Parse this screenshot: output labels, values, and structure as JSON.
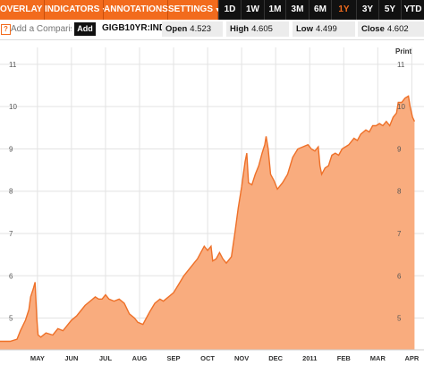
{
  "toolbar": {
    "overlay": "OVERLAY",
    "indicators": "INDICATORS",
    "annotations": "ANNOTATIONS",
    "settings": "SETTINGS",
    "ranges": [
      "1D",
      "1W",
      "1M",
      "3M",
      "6M",
      "1Y",
      "3Y",
      "5Y",
      "YTD"
    ],
    "active_range": "1Y"
  },
  "compare": {
    "help": "?",
    "placeholder": "Add a Comparison",
    "add_label": "Add"
  },
  "ticker": "GIGB10YR:IND",
  "stats": {
    "open_label": "Open",
    "open_value": "4.523",
    "high_label": "High",
    "high_value": "4.605",
    "low_label": "Low",
    "low_value": "4.499",
    "close_label": "Close",
    "close_value": "4.602"
  },
  "print_label": "Print",
  "colors": {
    "accent": "#f26b1d",
    "area_fill": "#f9ac7e",
    "line": "#ee7028"
  },
  "chart_data": {
    "type": "area",
    "ylim": [
      4.25,
      11.4
    ],
    "yticks": [
      5,
      6,
      7,
      8,
      9,
      10,
      11
    ],
    "grid": true,
    "x_labels": [
      {
        "label": "MAY",
        "x": 1.1
      },
      {
        "label": "JUN",
        "x": 2.1
      },
      {
        "label": "JUL",
        "x": 3.1
      },
      {
        "label": "AUG",
        "x": 4.1
      },
      {
        "label": "SEP",
        "x": 5.1
      },
      {
        "label": "OCT",
        "x": 6.1
      },
      {
        "label": "NOV",
        "x": 7.1
      },
      {
        "label": "DEC",
        "x": 8.1
      },
      {
        "label": "2011",
        "x": 9.1
      },
      {
        "label": "FEB",
        "x": 10.1
      },
      {
        "label": "MAR",
        "x": 11.1
      },
      {
        "label": "APR",
        "x": 12.1
      }
    ],
    "x_range": [
      0.0,
      12.3
    ],
    "series": [
      {
        "points": [
          [
            0.0,
            4.45
          ],
          [
            0.3,
            4.45
          ],
          [
            0.5,
            4.5
          ],
          [
            0.6,
            4.7
          ],
          [
            0.75,
            4.95
          ],
          [
            0.85,
            5.2
          ],
          [
            0.9,
            5.5
          ],
          [
            0.98,
            5.7
          ],
          [
            1.03,
            5.85
          ],
          [
            1.08,
            5.0
          ],
          [
            1.12,
            4.6
          ],
          [
            1.2,
            4.55
          ],
          [
            1.35,
            4.65
          ],
          [
            1.55,
            4.6
          ],
          [
            1.7,
            4.75
          ],
          [
            1.85,
            4.7
          ],
          [
            2.0,
            4.85
          ],
          [
            2.1,
            4.95
          ],
          [
            2.25,
            5.05
          ],
          [
            2.35,
            5.15
          ],
          [
            2.5,
            5.3
          ],
          [
            2.65,
            5.4
          ],
          [
            2.8,
            5.5
          ],
          [
            2.9,
            5.45
          ],
          [
            3.0,
            5.45
          ],
          [
            3.1,
            5.55
          ],
          [
            3.2,
            5.45
          ],
          [
            3.35,
            5.4
          ],
          [
            3.5,
            5.45
          ],
          [
            3.65,
            5.35
          ],
          [
            3.8,
            5.1
          ],
          [
            3.95,
            5.0
          ],
          [
            4.05,
            4.9
          ],
          [
            4.2,
            4.85
          ],
          [
            4.3,
            5.0
          ],
          [
            4.4,
            5.15
          ],
          [
            4.55,
            5.35
          ],
          [
            4.7,
            5.45
          ],
          [
            4.8,
            5.4
          ],
          [
            4.95,
            5.5
          ],
          [
            5.1,
            5.6
          ],
          [
            5.25,
            5.8
          ],
          [
            5.4,
            6.0
          ],
          [
            5.55,
            6.15
          ],
          [
            5.7,
            6.3
          ],
          [
            5.8,
            6.4
          ],
          [
            5.9,
            6.55
          ],
          [
            6.0,
            6.7
          ],
          [
            6.1,
            6.6
          ],
          [
            6.2,
            6.7
          ],
          [
            6.25,
            6.35
          ],
          [
            6.35,
            6.4
          ],
          [
            6.45,
            6.55
          ],
          [
            6.55,
            6.4
          ],
          [
            6.65,
            6.3
          ],
          [
            6.8,
            6.45
          ],
          [
            6.9,
            7.0
          ],
          [
            7.0,
            7.6
          ],
          [
            7.1,
            8.1
          ],
          [
            7.2,
            8.7
          ],
          [
            7.25,
            8.9
          ],
          [
            7.3,
            8.2
          ],
          [
            7.4,
            8.15
          ],
          [
            7.5,
            8.4
          ],
          [
            7.6,
            8.6
          ],
          [
            7.7,
            8.9
          ],
          [
            7.78,
            9.1
          ],
          [
            7.82,
            9.3
          ],
          [
            7.88,
            9.0
          ],
          [
            7.95,
            8.4
          ],
          [
            8.05,
            8.25
          ],
          [
            8.15,
            8.05
          ],
          [
            8.3,
            8.2
          ],
          [
            8.45,
            8.4
          ],
          [
            8.6,
            8.8
          ],
          [
            8.75,
            9.0
          ],
          [
            8.9,
            9.05
          ],
          [
            9.05,
            9.1
          ],
          [
            9.15,
            9.0
          ],
          [
            9.25,
            8.95
          ],
          [
            9.35,
            9.05
          ],
          [
            9.4,
            8.6
          ],
          [
            9.45,
            8.4
          ],
          [
            9.55,
            8.55
          ],
          [
            9.65,
            8.6
          ],
          [
            9.75,
            8.85
          ],
          [
            9.85,
            8.9
          ],
          [
            9.95,
            8.85
          ],
          [
            10.05,
            9.0
          ],
          [
            10.15,
            9.05
          ],
          [
            10.25,
            9.1
          ],
          [
            10.4,
            9.25
          ],
          [
            10.5,
            9.2
          ],
          [
            10.6,
            9.35
          ],
          [
            10.75,
            9.45
          ],
          [
            10.85,
            9.4
          ],
          [
            10.95,
            9.55
          ],
          [
            11.05,
            9.55
          ],
          [
            11.15,
            9.6
          ],
          [
            11.25,
            9.55
          ],
          [
            11.35,
            9.65
          ],
          [
            11.45,
            9.55
          ],
          [
            11.55,
            9.75
          ],
          [
            11.65,
            9.85
          ],
          [
            11.7,
            10.1
          ],
          [
            11.8,
            10.1
          ],
          [
            11.9,
            10.2
          ],
          [
            12.0,
            10.25
          ],
          [
            12.05,
            10.0
          ],
          [
            12.12,
            9.75
          ],
          [
            12.18,
            9.65
          ]
        ]
      }
    ]
  }
}
